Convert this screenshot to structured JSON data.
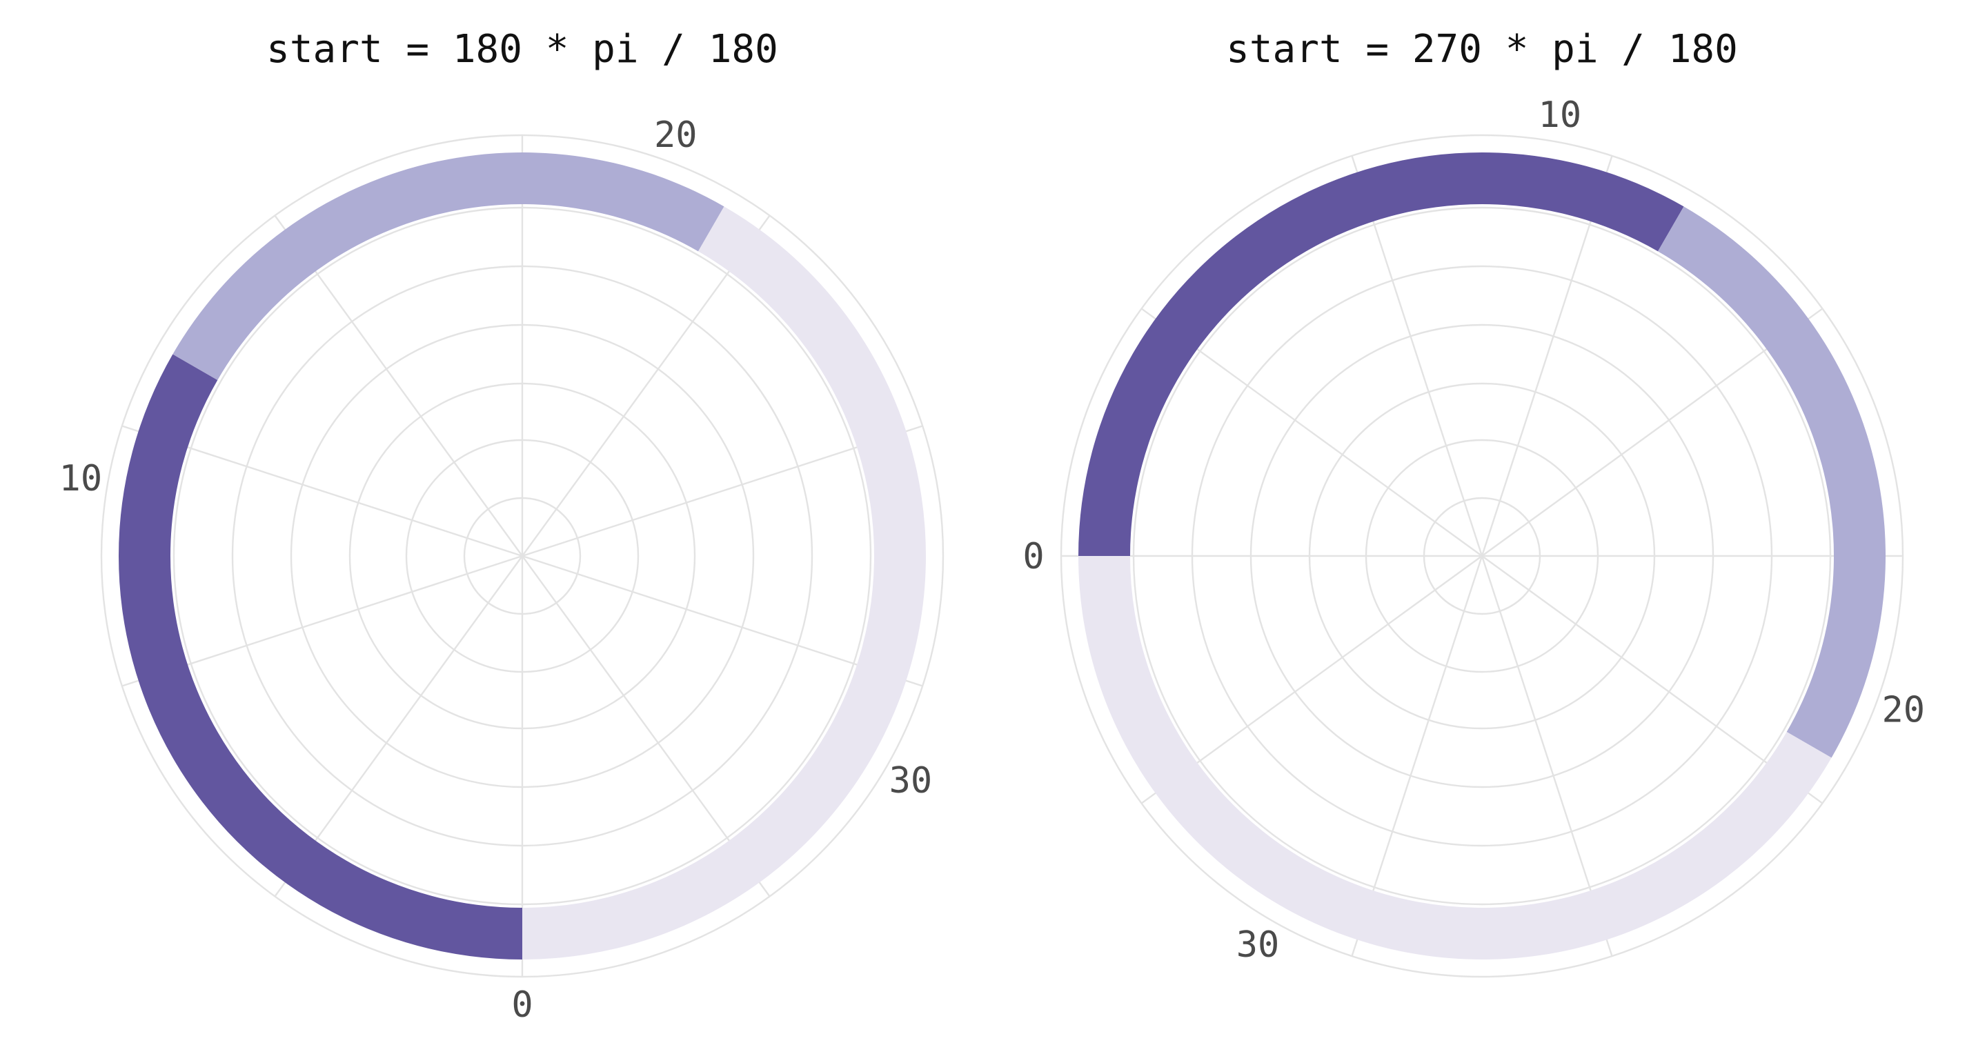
{
  "chart_data": [
    {
      "type": "polar-bar",
      "title": "start = 180 * pi / 180",
      "start_deg": 180,
      "direction": "clockwise",
      "theta_limit": [
        0,
        36
      ],
      "theta_ticks": [
        "0",
        "10",
        "20",
        "30"
      ],
      "theta_tick_values": [
        0,
        10,
        20,
        30
      ],
      "grid": true,
      "segments": [
        {
          "from": 0,
          "to": 12,
          "color": "#62569F"
        },
        {
          "from": 12,
          "to": 21,
          "color": "#AEADD4"
        },
        {
          "from": 21,
          "to": 36,
          "color": "#E9E6F1"
        }
      ]
    },
    {
      "type": "polar-bar",
      "title": "start = 270 * pi / 180",
      "start_deg": 270,
      "direction": "clockwise",
      "theta_limit": [
        0,
        36
      ],
      "theta_ticks": [
        "0",
        "10",
        "20",
        "30"
      ],
      "theta_tick_values": [
        0,
        10,
        20,
        30
      ],
      "grid": true,
      "segments": [
        {
          "from": 0,
          "to": 12,
          "color": "#62569F"
        },
        {
          "from": 12,
          "to": 21,
          "color": "#AEADD4"
        },
        {
          "from": 21,
          "to": 36,
          "color": "#E9E6F1"
        }
      ]
    }
  ]
}
